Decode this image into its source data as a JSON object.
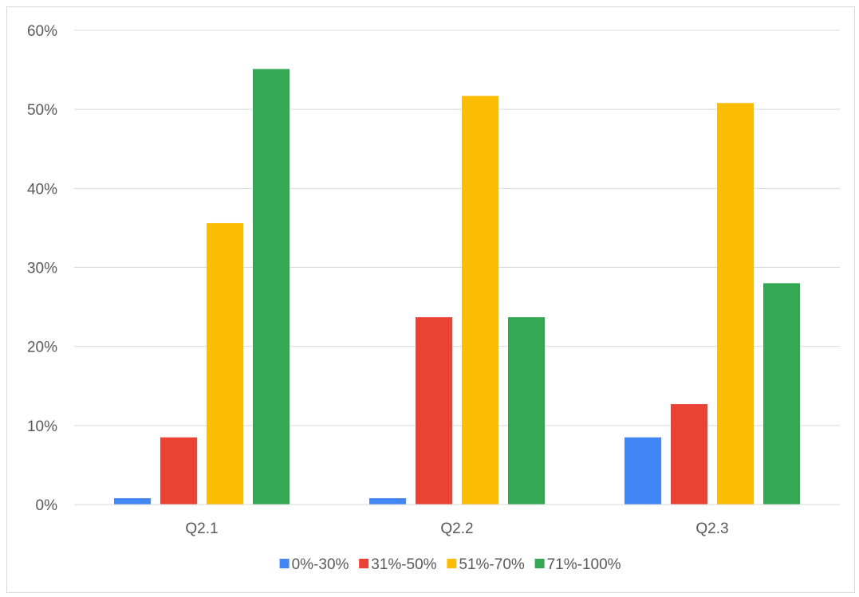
{
  "chart_data": {
    "type": "bar",
    "categories": [
      "Q2.1",
      "Q2.2",
      "Q2.3"
    ],
    "series": [
      {
        "name": "0%-30%",
        "color": "#4285F4",
        "values": [
          0.8,
          0.8,
          8.5
        ]
      },
      {
        "name": "31%-50%",
        "color": "#EA4335",
        "values": [
          8.5,
          23.7,
          12.7
        ]
      },
      {
        "name": "51%-70%",
        "color": "#FBBC04",
        "values": [
          35.6,
          51.7,
          50.8
        ]
      },
      {
        "name": "71%-100%",
        "color": "#34A853",
        "values": [
          55.1,
          23.7,
          28.0
        ]
      }
    ],
    "ylim": [
      0,
      60
    ],
    "yticks": [
      0,
      10,
      20,
      30,
      40,
      50,
      60
    ],
    "ytick_labels": [
      "0%",
      "10%",
      "20%",
      "30%",
      "40%",
      "50%",
      "60%"
    ],
    "grid": true,
    "legend_position": "bottom"
  }
}
